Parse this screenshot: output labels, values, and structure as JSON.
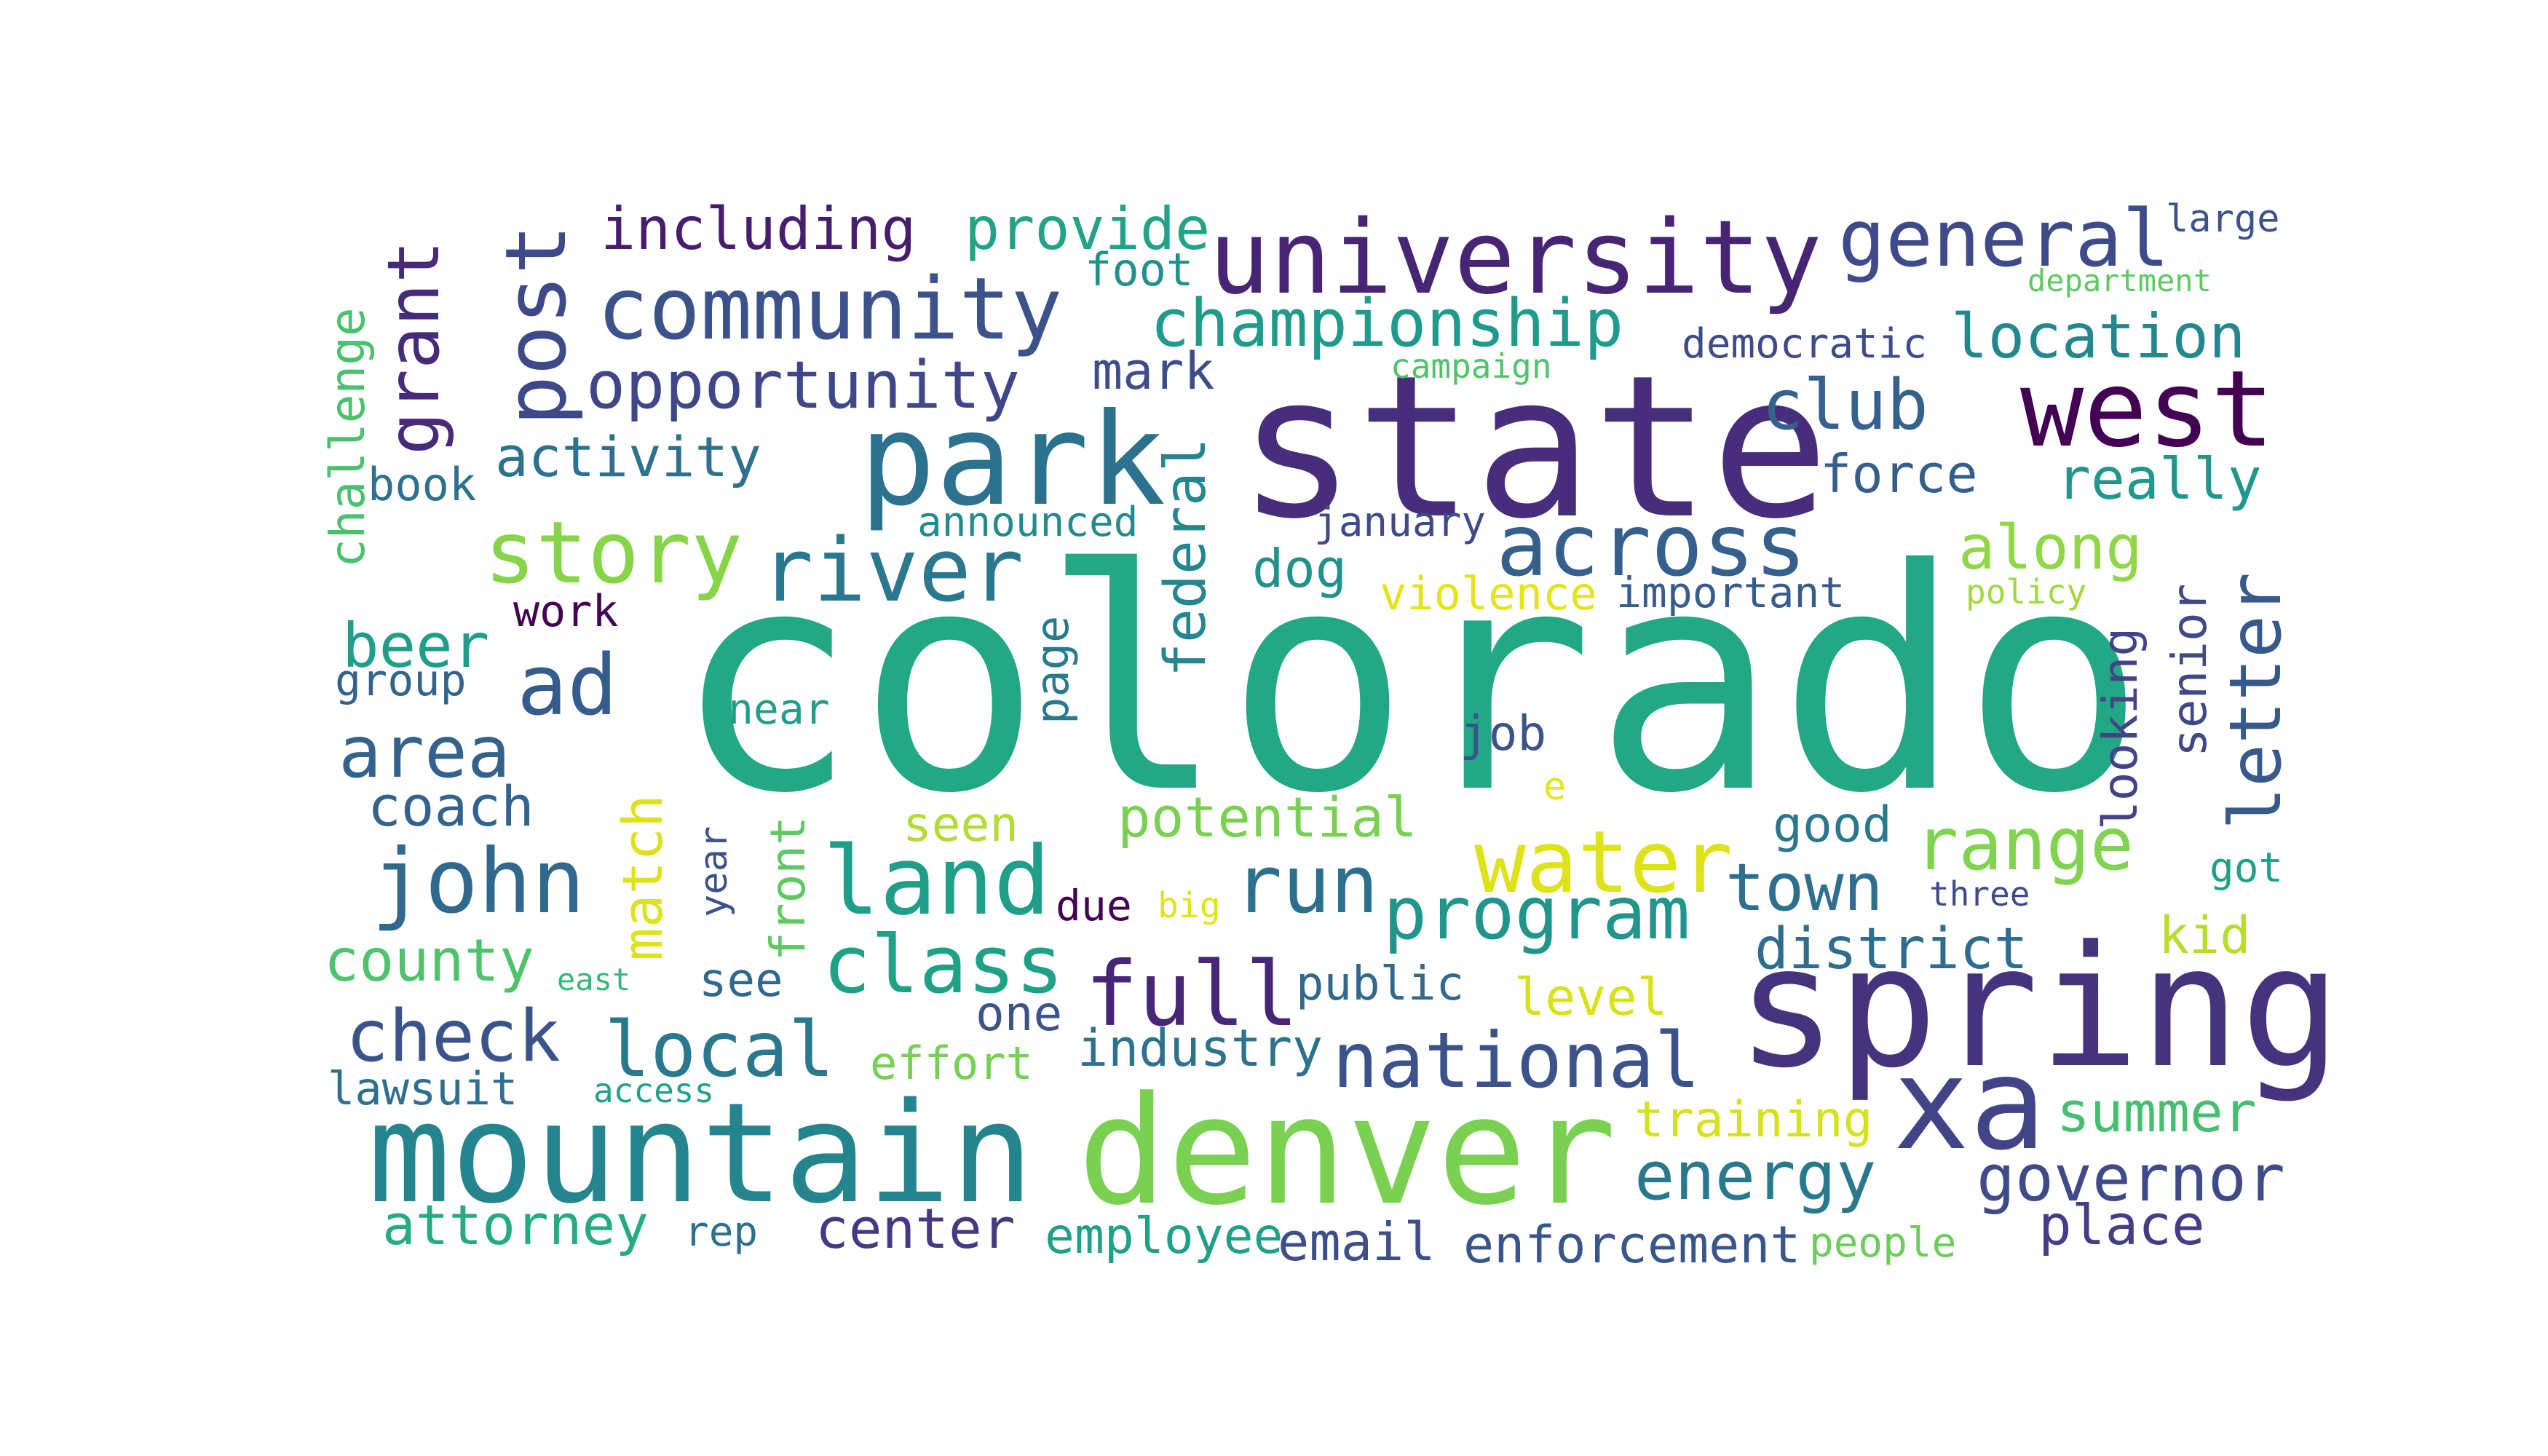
{
  "words": [
    {
      "text": "colorado",
      "color": "#22a884"
    },
    {
      "text": "state",
      "color": "#472d7b"
    },
    {
      "text": "spring",
      "color": "#46337e"
    },
    {
      "text": "mountain",
      "color": "#25858e"
    },
    {
      "text": "denver",
      "color": "#7ad151"
    },
    {
      "text": "park",
      "color": "#2c728e"
    },
    {
      "text": "university",
      "color": "#482475"
    },
    {
      "text": "xa",
      "color": "#414487"
    },
    {
      "text": "west",
      "color": "#440154"
    },
    {
      "text": "community",
      "color": "#3b528b"
    },
    {
      "text": "post",
      "color": "#3e4989"
    },
    {
      "text": "across",
      "color": "#355f8d"
    },
    {
      "text": "land",
      "color": "#1f9e89"
    },
    {
      "text": "river",
      "color": "#2a788e"
    },
    {
      "text": "story",
      "color": "#86d549"
    },
    {
      "text": "john",
      "color": "#31688e"
    },
    {
      "text": "full",
      "color": "#482677"
    },
    {
      "text": "water",
      "color": "#dde318"
    },
    {
      "text": "national",
      "color": "#3b528b"
    },
    {
      "text": "general",
      "color": "#3e4a89"
    },
    {
      "text": "class",
      "color": "#1fa187"
    },
    {
      "text": "program",
      "color": "#1f958b"
    },
    {
      "text": "local",
      "color": "#2a788e"
    },
    {
      "text": "grant",
      "color": "#472a7a"
    },
    {
      "text": "run",
      "color": "#2d708e"
    },
    {
      "text": "championship",
      "color": "#1e9b8a"
    },
    {
      "text": "range",
      "color": "#7fd34e"
    },
    {
      "text": "opportunity",
      "color": "#3f4788"
    },
    {
      "text": "energy",
      "color": "#29798e"
    },
    {
      "text": "ad",
      "color": "#365c8d"
    },
    {
      "text": "letter",
      "color": "#38598c"
    },
    {
      "text": "club",
      "color": "#34618d"
    },
    {
      "text": "check",
      "color": "#3a538b"
    },
    {
      "text": "area",
      "color": "#33638d"
    },
    {
      "text": "town",
      "color": "#2e6e8e"
    },
    {
      "text": "governor",
      "color": "#3e4a89"
    },
    {
      "text": "location",
      "color": "#23888e"
    },
    {
      "text": "along",
      "color": "#8fd744"
    },
    {
      "text": "including",
      "color": "#481c6e"
    },
    {
      "text": "provide",
      "color": "#20a386"
    },
    {
      "text": "county",
      "color": "#4ec36b"
    },
    {
      "text": "beer",
      "color": "#1f9e89"
    },
    {
      "text": "summer",
      "color": "#44bf70"
    },
    {
      "text": "district",
      "color": "#2e6d8e"
    },
    {
      "text": "really",
      "color": "#1f988b"
    },
    {
      "text": "federal",
      "color": "#24868e"
    },
    {
      "text": "potential",
      "color": "#7ad151"
    },
    {
      "text": "match",
      "color": "#dde318"
    },
    {
      "text": "attorney",
      "color": "#25ab82"
    },
    {
      "text": "place",
      "color": "#433e85"
    },
    {
      "text": "enforcement",
      "color": "#39568c"
    },
    {
      "text": "center",
      "color": "#443983"
    },
    {
      "text": "email",
      "color": "#3d4e8a"
    },
    {
      "text": "employee",
      "color": "#1fa088"
    },
    {
      "text": "activity",
      "color": "#2d718e"
    },
    {
      "text": "coach",
      "color": "#33638d"
    },
    {
      "text": "force",
      "color": "#355e8d"
    },
    {
      "text": "senior",
      "color": "#3f4889"
    },
    {
      "text": "looking",
      "color": "#414487"
    },
    {
      "text": "industry",
      "color": "#2c728e"
    },
    {
      "text": "public",
      "color": "#31688e"
    },
    {
      "text": "dog",
      "color": "#21918c"
    },
    {
      "text": "front",
      "color": "#5ec962"
    },
    {
      "text": "mark",
      "color": "#3d4d8a"
    },
    {
      "text": "kid",
      "color": "#b5de2b"
    },
    {
      "text": "good",
      "color": "#2a788e"
    },
    {
      "text": "level",
      "color": "#d8e219"
    },
    {
      "text": "training",
      "color": "#d5e21a"
    },
    {
      "text": "democratic",
      "color": "#3e4a89"
    },
    {
      "text": "page",
      "color": "#29798e"
    },
    {
      "text": "book",
      "color": "#2c728e"
    },
    {
      "text": "challenge",
      "color": "#4ac16d"
    },
    {
      "text": "foot",
      "color": "#21918c"
    },
    {
      "text": "announced",
      "color": "#238a8d"
    },
    {
      "text": "violence",
      "color": "#e5e419"
    },
    {
      "text": "important",
      "color": "#365c8d"
    },
    {
      "text": "seen",
      "color": "#b0dd2f"
    },
    {
      "text": "see",
      "color": "#31688e"
    },
    {
      "text": "one",
      "color": "#3b528b"
    },
    {
      "text": "effort",
      "color": "#75d054"
    },
    {
      "text": "group",
      "color": "#33638d"
    },
    {
      "text": "work",
      "color": "#440154"
    },
    {
      "text": "near",
      "color": "#1f9e89"
    },
    {
      "text": "job",
      "color": "#3b528b"
    },
    {
      "text": "lawsuit",
      "color": "#2e6e8e"
    },
    {
      "text": "january",
      "color": "#3e4a89"
    },
    {
      "text": "rep",
      "color": "#2d708e"
    },
    {
      "text": "year",
      "color": "#3b528b"
    },
    {
      "text": "due",
      "color": "#440154"
    },
    {
      "text": "people",
      "color": "#6ccd5a"
    },
    {
      "text": "got",
      "color": "#1fa187"
    },
    {
      "text": "large",
      "color": "#3b528b"
    },
    {
      "text": "policy",
      "color": "#9fda3a"
    },
    {
      "text": "campaign",
      "color": "#4ec36b"
    },
    {
      "text": "department",
      "color": "#5ec962"
    },
    {
      "text": "access",
      "color": "#1fa187"
    },
    {
      "text": "three",
      "color": "#3e4a89"
    },
    {
      "text": "east",
      "color": "#35b779"
    },
    {
      "text": "big",
      "color": "#e2e418"
    },
    {
      "text": "e",
      "color": "#e5e419"
    }
  ]
}
